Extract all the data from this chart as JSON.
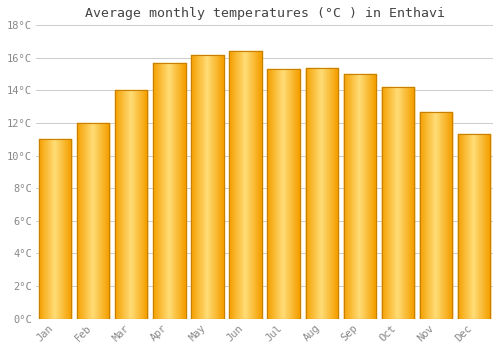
{
  "title": "Average monthly temperatures (°C ) in Enthavi",
  "months": [
    "Jan",
    "Feb",
    "Mar",
    "Apr",
    "May",
    "Jun",
    "Jul",
    "Aug",
    "Sep",
    "Oct",
    "Nov",
    "Dec"
  ],
  "values": [
    11.0,
    12.0,
    14.0,
    15.7,
    16.2,
    16.4,
    15.3,
    15.4,
    15.0,
    14.2,
    12.7,
    11.3
  ],
  "bar_color_center": "#FFD966",
  "bar_color_edge": "#F5A800",
  "bar_edge_border": "#C88000",
  "background_color": "#FFFFFF",
  "grid_color": "#CCCCCC",
  "tick_label_color": "#888888",
  "title_color": "#444444",
  "ylim": [
    0,
    18
  ],
  "yticks": [
    0,
    2,
    4,
    6,
    8,
    10,
    12,
    14,
    16,
    18
  ],
  "ytick_labels": [
    "0°C",
    "2°C",
    "4°C",
    "6°C",
    "8°C",
    "10°C",
    "12°C",
    "14°C",
    "16°C",
    "18°C"
  ]
}
